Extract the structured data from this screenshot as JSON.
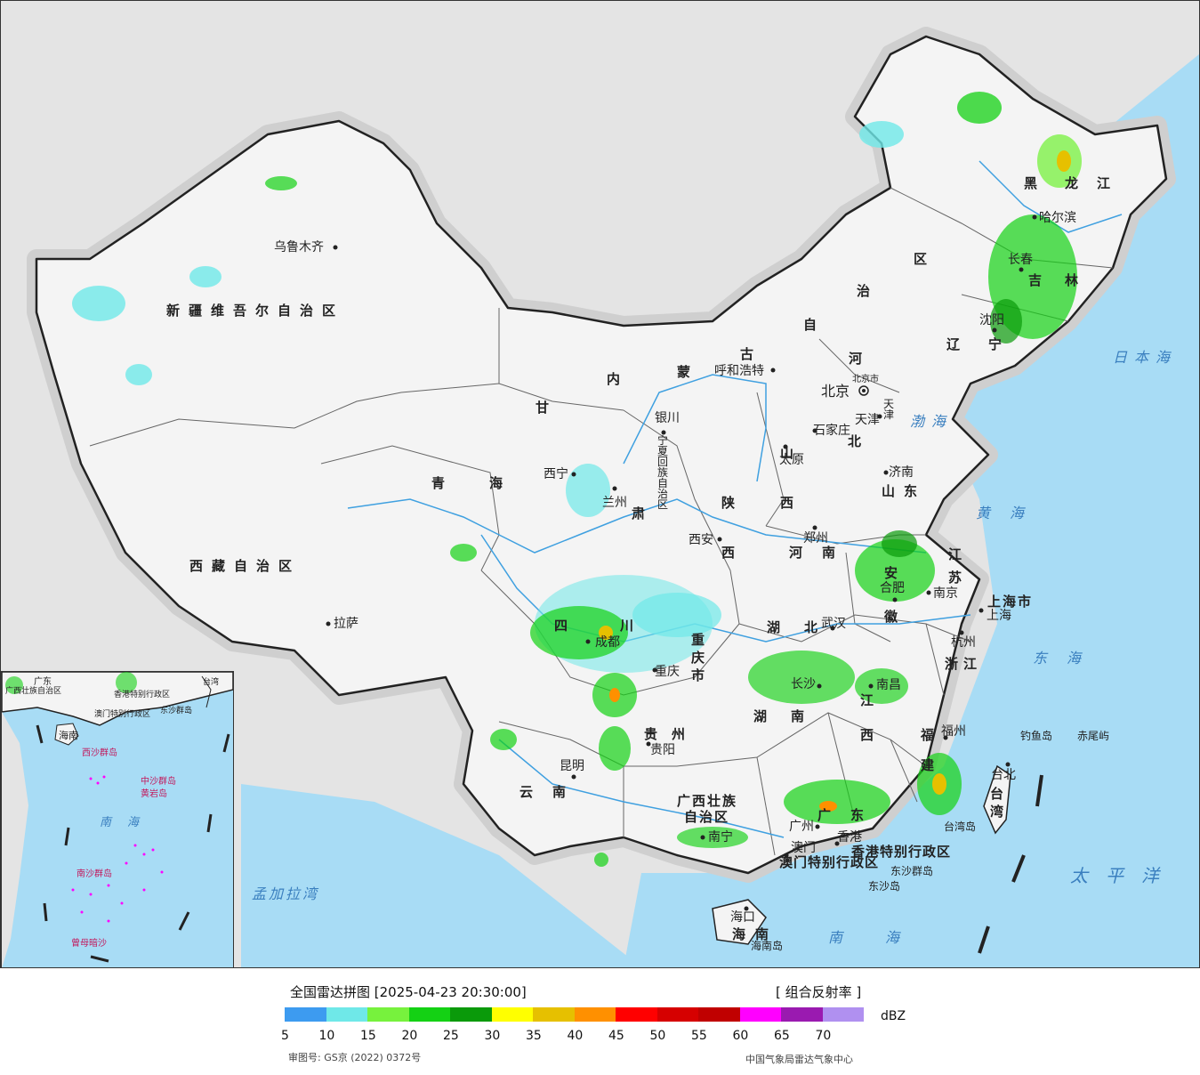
{
  "colors": {
    "sea": "#a8dcf5",
    "land": "#f4f4f4",
    "outside": "#e4e4e4",
    "border": "#222222",
    "province": "#666666",
    "river": "#3fa0e0"
  },
  "legend": {
    "title": "全国雷达拼图 [2025-04-23 20:30:00]",
    "product": "[ 组合反射率 ]",
    "unit": "dBZ",
    "colors": [
      "#3d9bf0",
      "#6fe8e8",
      "#77f23d",
      "#14d114",
      "#0a9a0a",
      "#ffff00",
      "#e6c000",
      "#ff9000",
      "#ff0000",
      "#d60000",
      "#c00000",
      "#ff00ff",
      "#9a1ab0",
      "#b090f0"
    ],
    "ticks": [
      "5",
      "10",
      "15",
      "20",
      "25",
      "30",
      "35",
      "40",
      "45",
      "50",
      "55",
      "60",
      "65",
      "70"
    ],
    "review_number": "审图号: GS京 (2022) 0372号",
    "credit": "中国气象局雷达气象中心"
  },
  "labels": {
    "urumqi": "乌鲁木齐",
    "xinjiang": "新疆维吾尔自治区",
    "xizang": "西藏自治区",
    "lhasa": "拉萨",
    "qinghai": "青海",
    "xining": "西宁",
    "gansu": "甘",
    "su": "肃",
    "lanzhou": "兰州",
    "neimenggu_1": "内",
    "neimenggu_2": "蒙",
    "neimenggu_3": "古",
    "neimenggu_4": "自",
    "neimenggu_5": "治",
    "neimenggu_6": "区",
    "hohhot": "呼和浩特",
    "yinchuan": "银川",
    "ningxia": "宁夏回族自治区",
    "shaanxi_1": "陕",
    "shaanxi_2": "西",
    "xian": "西安",
    "shanxi": "山西",
    "taiyuan": "太原",
    "hebei_1": "河",
    "hebei_2": "北",
    "shijiazhuang": "石家庄",
    "beijing": "北京",
    "beijing_shi": "北京市",
    "tianjin": "天津",
    "tianjin_shi": "天津",
    "shandong": "山东",
    "jinan": "济南",
    "henan": "河南",
    "zhengzhou": "郑州",
    "jiangsu_1": "江",
    "jiangsu_2": "苏",
    "nanjing": "南京",
    "anhui_1": "安",
    "anhui_2": "徽",
    "hefei": "合肥",
    "shanghai_shi": "上海市",
    "shanghai": "上海",
    "zhejiang": "浙江",
    "hangzhou": "杭州",
    "hubei_1": "湖",
    "hubei_2": "北",
    "wuhan": "武汉",
    "sichuan_1": "四",
    "sichuan_2": "川",
    "chengdu": "成都",
    "chongqing_shi": "重庆市",
    "chongqing": "重庆",
    "hunan_1": "湖",
    "hunan_2": "南",
    "changsha": "长沙",
    "jiangxi_1": "江",
    "jiangxi_2": "西",
    "nanchang": "南昌",
    "fujian_1": "福",
    "fujian_2": "建",
    "fuzhou": "福州",
    "guizhou": "贵州",
    "guiyang": "贵阳",
    "yunnan": "云南",
    "kunming": "昆明",
    "guangxi_1": "广西壮族",
    "guangxi_2": "自治区",
    "nanning": "南宁",
    "guangdong_1": "广",
    "guangdong_2": "东",
    "guangzhou": "广州",
    "hongkong": "香港",
    "hk_sar": "香港特别行政区",
    "macao": "澳门",
    "macao_sar": "澳门特别行政区",
    "hainan_1": "海",
    "hainan_2": "南",
    "haikou": "海口",
    "hainan_island": "海南岛",
    "taiwan_1": "台",
    "taiwan_2": "湾",
    "taibei": "台北",
    "taiwan_island": "台湾岛",
    "diaoyu": "钓鱼岛",
    "chiwei": "赤尾屿",
    "dongsha_qundao": "东沙群岛",
    "dongsha_dao": "东沙岛",
    "heilongjiang_1": "黑",
    "heilongjiang_2": "龙",
    "heilongjiang_3": "江",
    "harbin": "哈尔滨",
    "jilin_1": "吉",
    "jilin_2": "林",
    "changchun": "长春",
    "liaoning_1": "辽",
    "liaoning_2": "宁",
    "shenyang": "沈阳",
    "sea_japan": "日本海",
    "sea_bohai": "渤海",
    "sea_yellow": "黄海",
    "sea_east": "东海",
    "sea_pacific": "太平洋",
    "sea_south": "南海",
    "bay_bengal": "孟加拉湾"
  },
  "inset": {
    "guangdong": "广东",
    "guangxi": "广西壮族自治区",
    "hk": "香港特别行政区",
    "macao": "澳门特别行政区",
    "taiwan": "台湾",
    "dongsha": "东沙群岛",
    "hainan": "海南",
    "xisha": "西沙群岛",
    "zhongsha": "中沙群岛",
    "huangyan": "黄岩岛",
    "nanhai": "南海",
    "nansha": "南沙群岛",
    "zengmu": "曾母暗沙"
  }
}
